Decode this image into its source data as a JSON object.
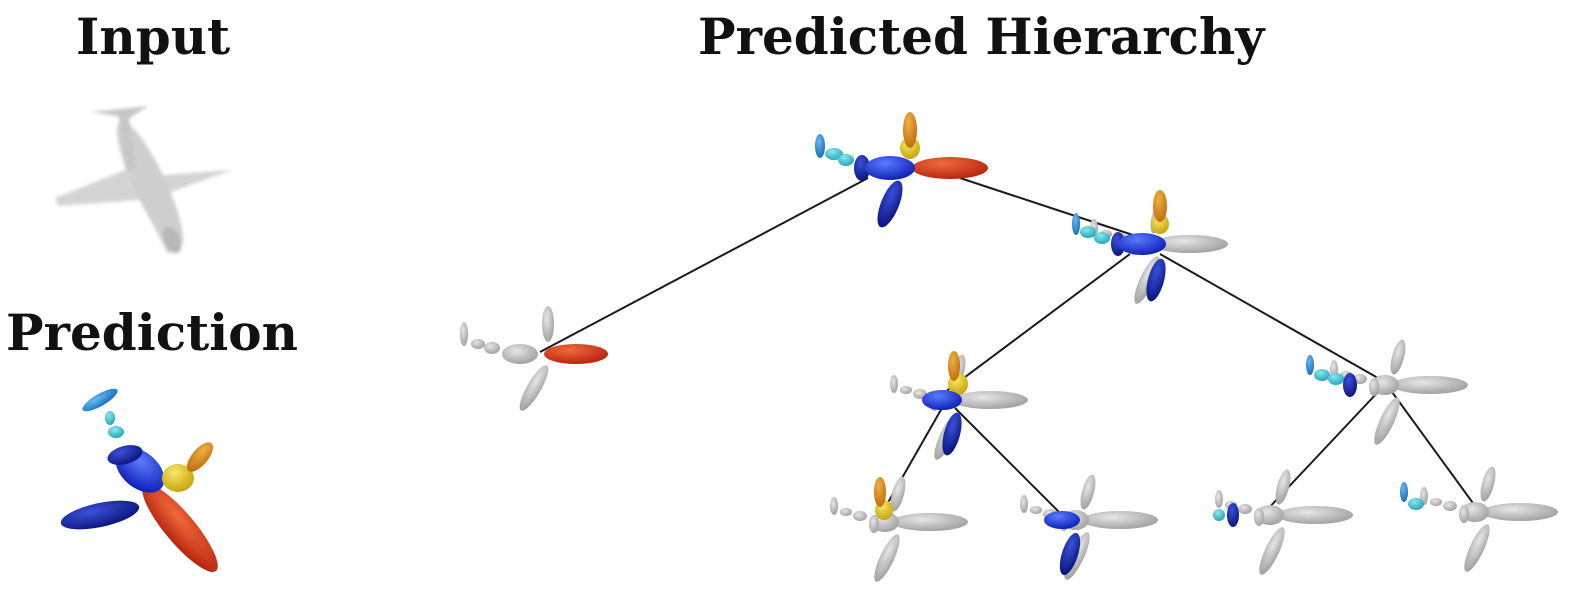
{
  "labels": {
    "input": "Input",
    "prediction": "Prediction",
    "hierarchy": "Predicted Hierarchy"
  },
  "colors": {
    "red": "#d63a1c",
    "blue": "#1a2fe0",
    "dark_navy": "#0b1670",
    "navy": "#1726a6",
    "yellow": "#e0c414",
    "orange": "#d88a1a",
    "cyan": "#3cc4d0",
    "sky_blue": "#2a8ad8",
    "grey": "#bdbdbd",
    "edge": "#1a1a1a"
  }
}
